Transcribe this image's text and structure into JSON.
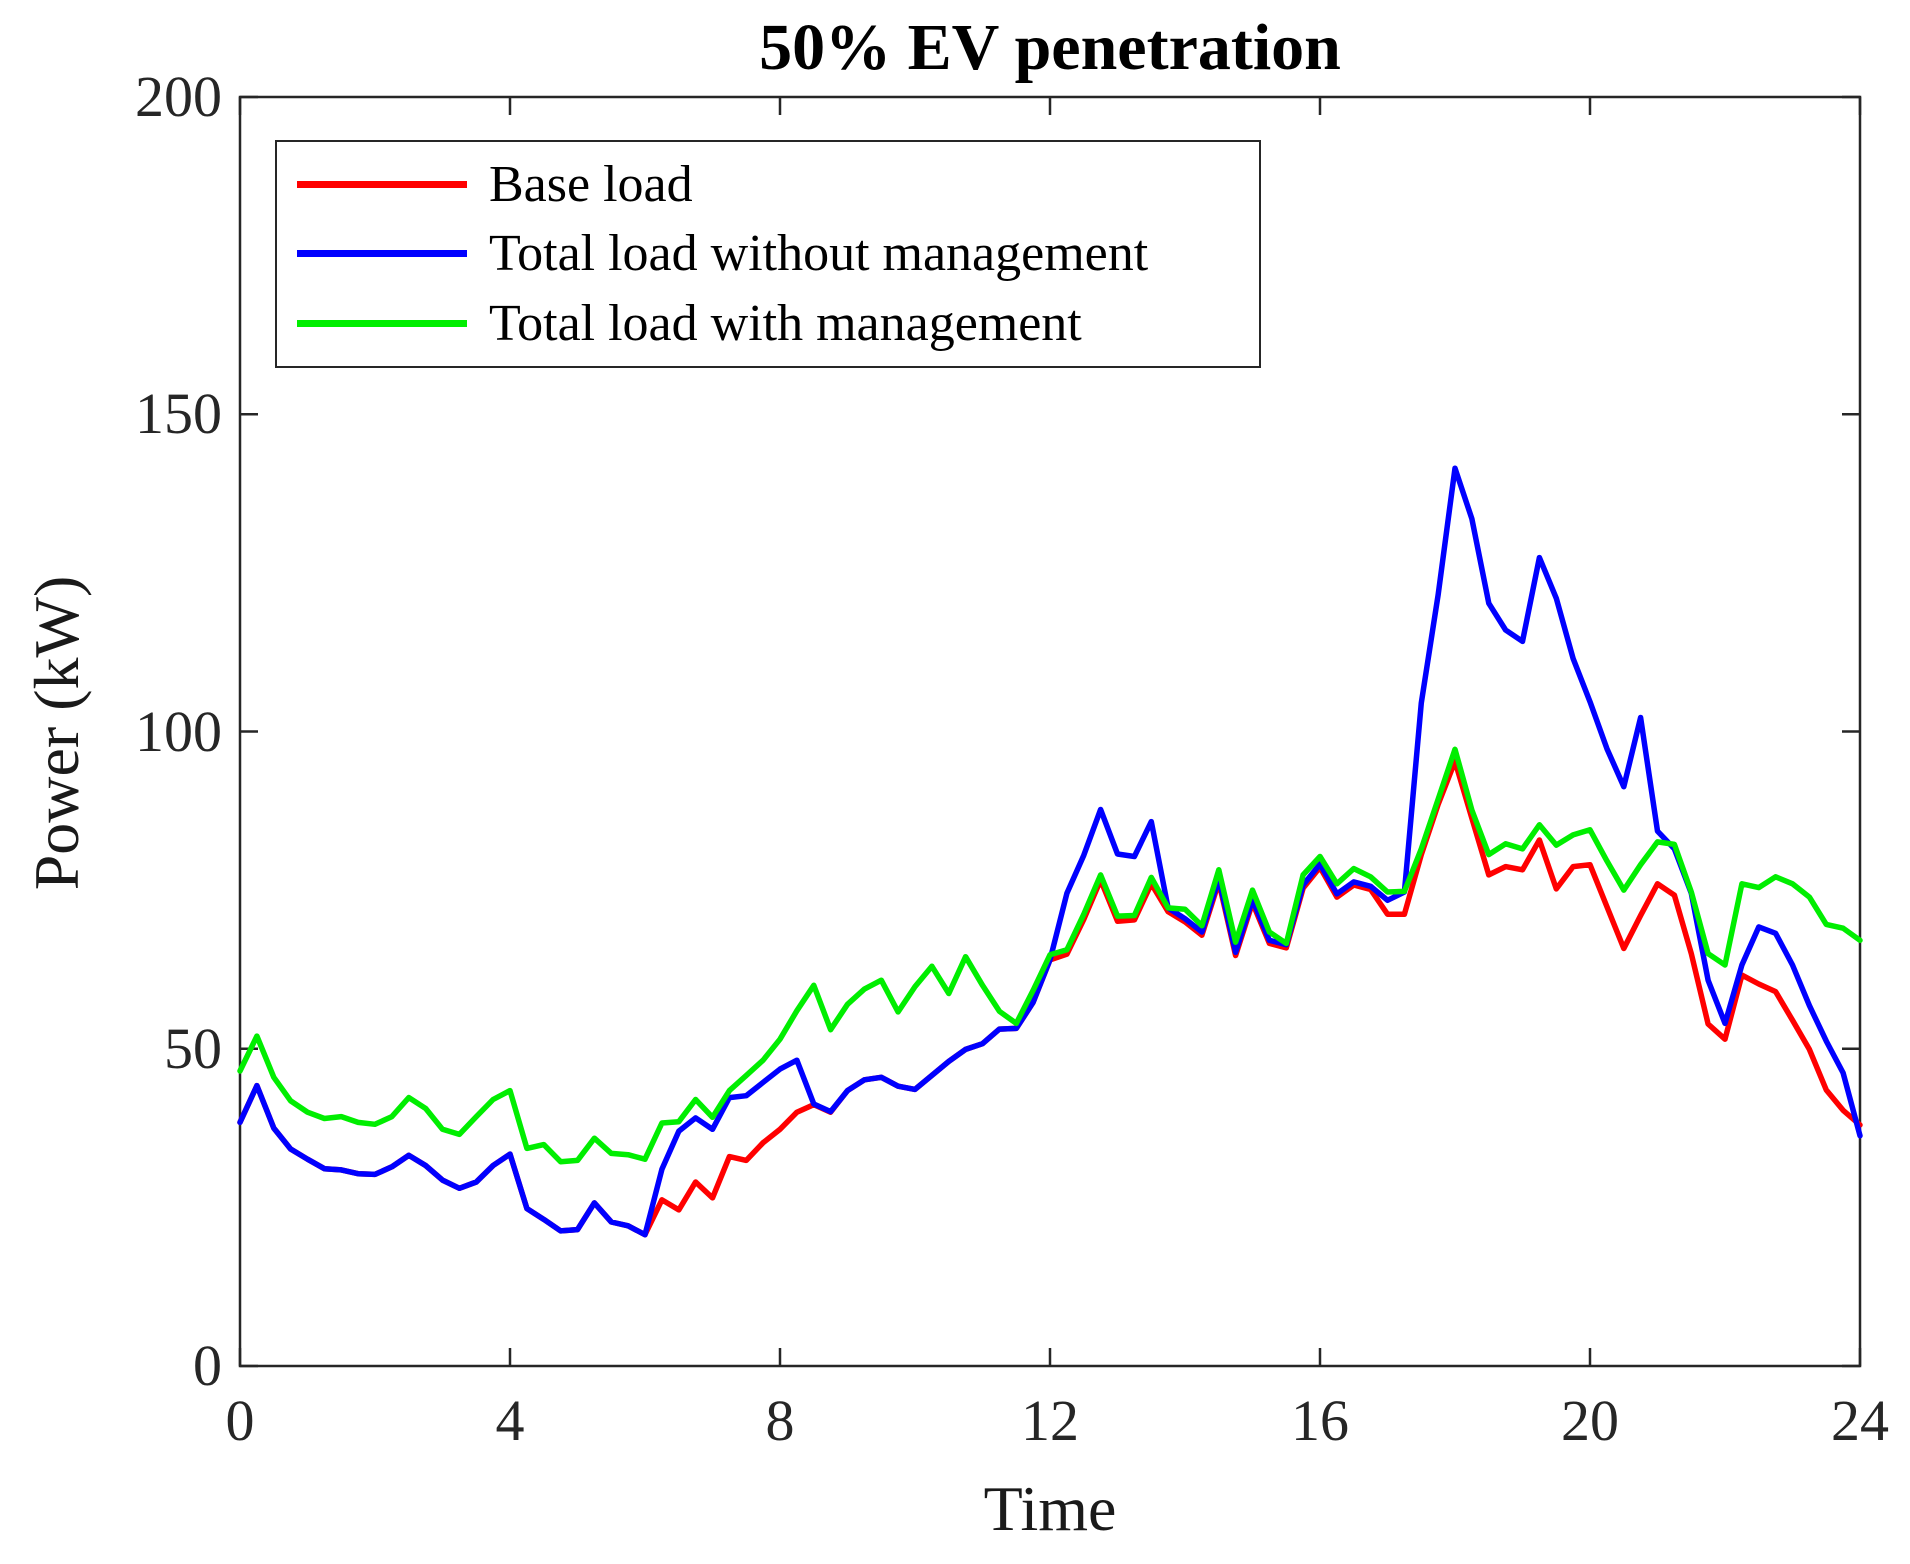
{
  "figure": {
    "title": "50% EV penetration",
    "xlabel": "Time",
    "ylabel": "Power (kW)"
  },
  "chart_data": {
    "type": "line",
    "title": "50% EV penetration",
    "xlabel": "Time",
    "ylabel": "Power (kW)",
    "xlim": [
      0,
      24
    ],
    "ylim": [
      0,
      200
    ],
    "xticks": [
      0,
      4,
      8,
      12,
      16,
      20,
      24
    ],
    "yticks": [
      0,
      50,
      100,
      150,
      200
    ],
    "grid": false,
    "legend_position": "top-left",
    "axis_color": "#262626",
    "x_unit": "hours",
    "x_step_hours": 0.25,
    "x": [
      0,
      0.25,
      0.5,
      0.75,
      1,
      1.25,
      1.5,
      1.75,
      2,
      2.25,
      2.5,
      2.75,
      3,
      3.25,
      3.5,
      3.75,
      4,
      4.25,
      4.5,
      4.75,
      5,
      5.25,
      5.5,
      5.75,
      6,
      6.25,
      6.5,
      6.75,
      7,
      7.25,
      7.5,
      7.75,
      8,
      8.25,
      8.5,
      8.75,
      9,
      9.25,
      9.5,
      9.75,
      10,
      10.25,
      10.5,
      10.75,
      11,
      11.25,
      11.5,
      11.75,
      12,
      12.25,
      12.5,
      12.75,
      13,
      13.25,
      13.5,
      13.75,
      14,
      14.25,
      14.5,
      14.75,
      15,
      15.25,
      15.5,
      15.75,
      16,
      16.25,
      16.5,
      16.75,
      17,
      17.25,
      17.5,
      17.75,
      18,
      18.25,
      18.5,
      18.75,
      19,
      19.25,
      19.5,
      19.75,
      20,
      20.25,
      20.5,
      20.75,
      21,
      21.25,
      21.5,
      21.75,
      22,
      22.25,
      22.5,
      22.75,
      23,
      23.25,
      23.5,
      23.75,
      24
    ],
    "series": [
      {
        "name": "Base load",
        "color": "#ff0000",
        "values": [
          38.4,
          44.2,
          37.5,
          34.2,
          32.6,
          31.1,
          30.9,
          30.3,
          30.2,
          31.4,
          33.2,
          31.6,
          29.3,
          28,
          29,
          31.6,
          33.4,
          24.8,
          23.1,
          21.3,
          21.5,
          25.7,
          22.7,
          22.1,
          20.7,
          26.2,
          24.6,
          29,
          26.5,
          33,
          32.4,
          35.2,
          37.3,
          40,
          41.2,
          40,
          43.4,
          45.1,
          45.5,
          44.1,
          43.6,
          45.8,
          48,
          49.9,
          50.8,
          53.1,
          53.2,
          57.3,
          64,
          64.9,
          70.4,
          76.6,
          70.1,
          70.3,
          76,
          71.6,
          70,
          67.9,
          76.3,
          64.7,
          73,
          66.6,
          65.9,
          75.3,
          78.6,
          73.9,
          75.8,
          75.1,
          71.2,
          71.2,
          80.6,
          88.5,
          95.3,
          86.3,
          77.4,
          78.7,
          78.2,
          82.9,
          75.2,
          78.7,
          79,
          72.4,
          65.8,
          71,
          76,
          74.2,
          65,
          53.9,
          51.5,
          61.6,
          60.2,
          59,
          54.5,
          49.9,
          43.5,
          40.3,
          38
        ]
      },
      {
        "name": "Total load without management",
        "color": "#0000ff",
        "values": [
          38.4,
          44.2,
          37.5,
          34.2,
          32.6,
          31.1,
          30.9,
          30.3,
          30.2,
          31.4,
          33.2,
          31.6,
          29.3,
          28,
          29,
          31.6,
          33.4,
          24.8,
          23.1,
          21.3,
          21.5,
          25.7,
          22.7,
          22.1,
          20.7,
          31,
          37,
          39.1,
          37.3,
          42.3,
          42.6,
          44.7,
          46.8,
          48.2,
          41.3,
          40.1,
          43.4,
          45.1,
          45.5,
          44.1,
          43.6,
          45.8,
          48,
          49.9,
          50.8,
          53.1,
          53.2,
          57.3,
          64,
          74.5,
          80.5,
          87.7,
          80.7,
          80.3,
          85.8,
          72.2,
          70.5,
          68.4,
          76.8,
          65.2,
          73.5,
          67.1,
          66.4,
          75.8,
          79.1,
          74.4,
          76.3,
          75.6,
          73.4,
          74.7,
          104.5,
          121.5,
          141.5,
          133.5,
          120.2,
          116,
          114.2,
          127.4,
          121,
          111.5,
          104.7,
          97.3,
          91.3,
          102.2,
          84.3,
          81.5,
          74.5,
          60.8,
          54,
          63.2,
          69.2,
          68.2,
          63.2,
          56.8,
          51.2,
          46.2,
          36.3
        ]
      },
      {
        "name": "Total load with management",
        "color": "#00ee00",
        "values": [
          46.5,
          52,
          45.5,
          41.8,
          40,
          39,
          39.3,
          38.4,
          38.1,
          39.3,
          42.3,
          40.6,
          37.3,
          36.5,
          39.3,
          42,
          43.4,
          34.3,
          34.9,
          32.2,
          32.4,
          35.9,
          33.5,
          33.3,
          32.6,
          38.3,
          38.5,
          42,
          39.2,
          43.4,
          45.8,
          48.2,
          51.5,
          56,
          60,
          53,
          57,
          59.4,
          60.8,
          55.8,
          59.8,
          63,
          58.7,
          64.5,
          60,
          55.9,
          54,
          59.2,
          64.8,
          65.6,
          71.2,
          77.4,
          70.9,
          71,
          77,
          72.2,
          72,
          69.4,
          78.2,
          66.8,
          75,
          68.4,
          66.6,
          77.4,
          80.3,
          76,
          78.4,
          77.1,
          74.7,
          74.8,
          81.5,
          89.3,
          97.2,
          87.6,
          80.6,
          82.3,
          81.5,
          85.3,
          82.1,
          83.7,
          84.5,
          79.6,
          75,
          79,
          82.6,
          82.2,
          74.7,
          65,
          63.2,
          76,
          75.4,
          77.1,
          76,
          73.9,
          69.6,
          69,
          67.1
        ]
      }
    ]
  }
}
